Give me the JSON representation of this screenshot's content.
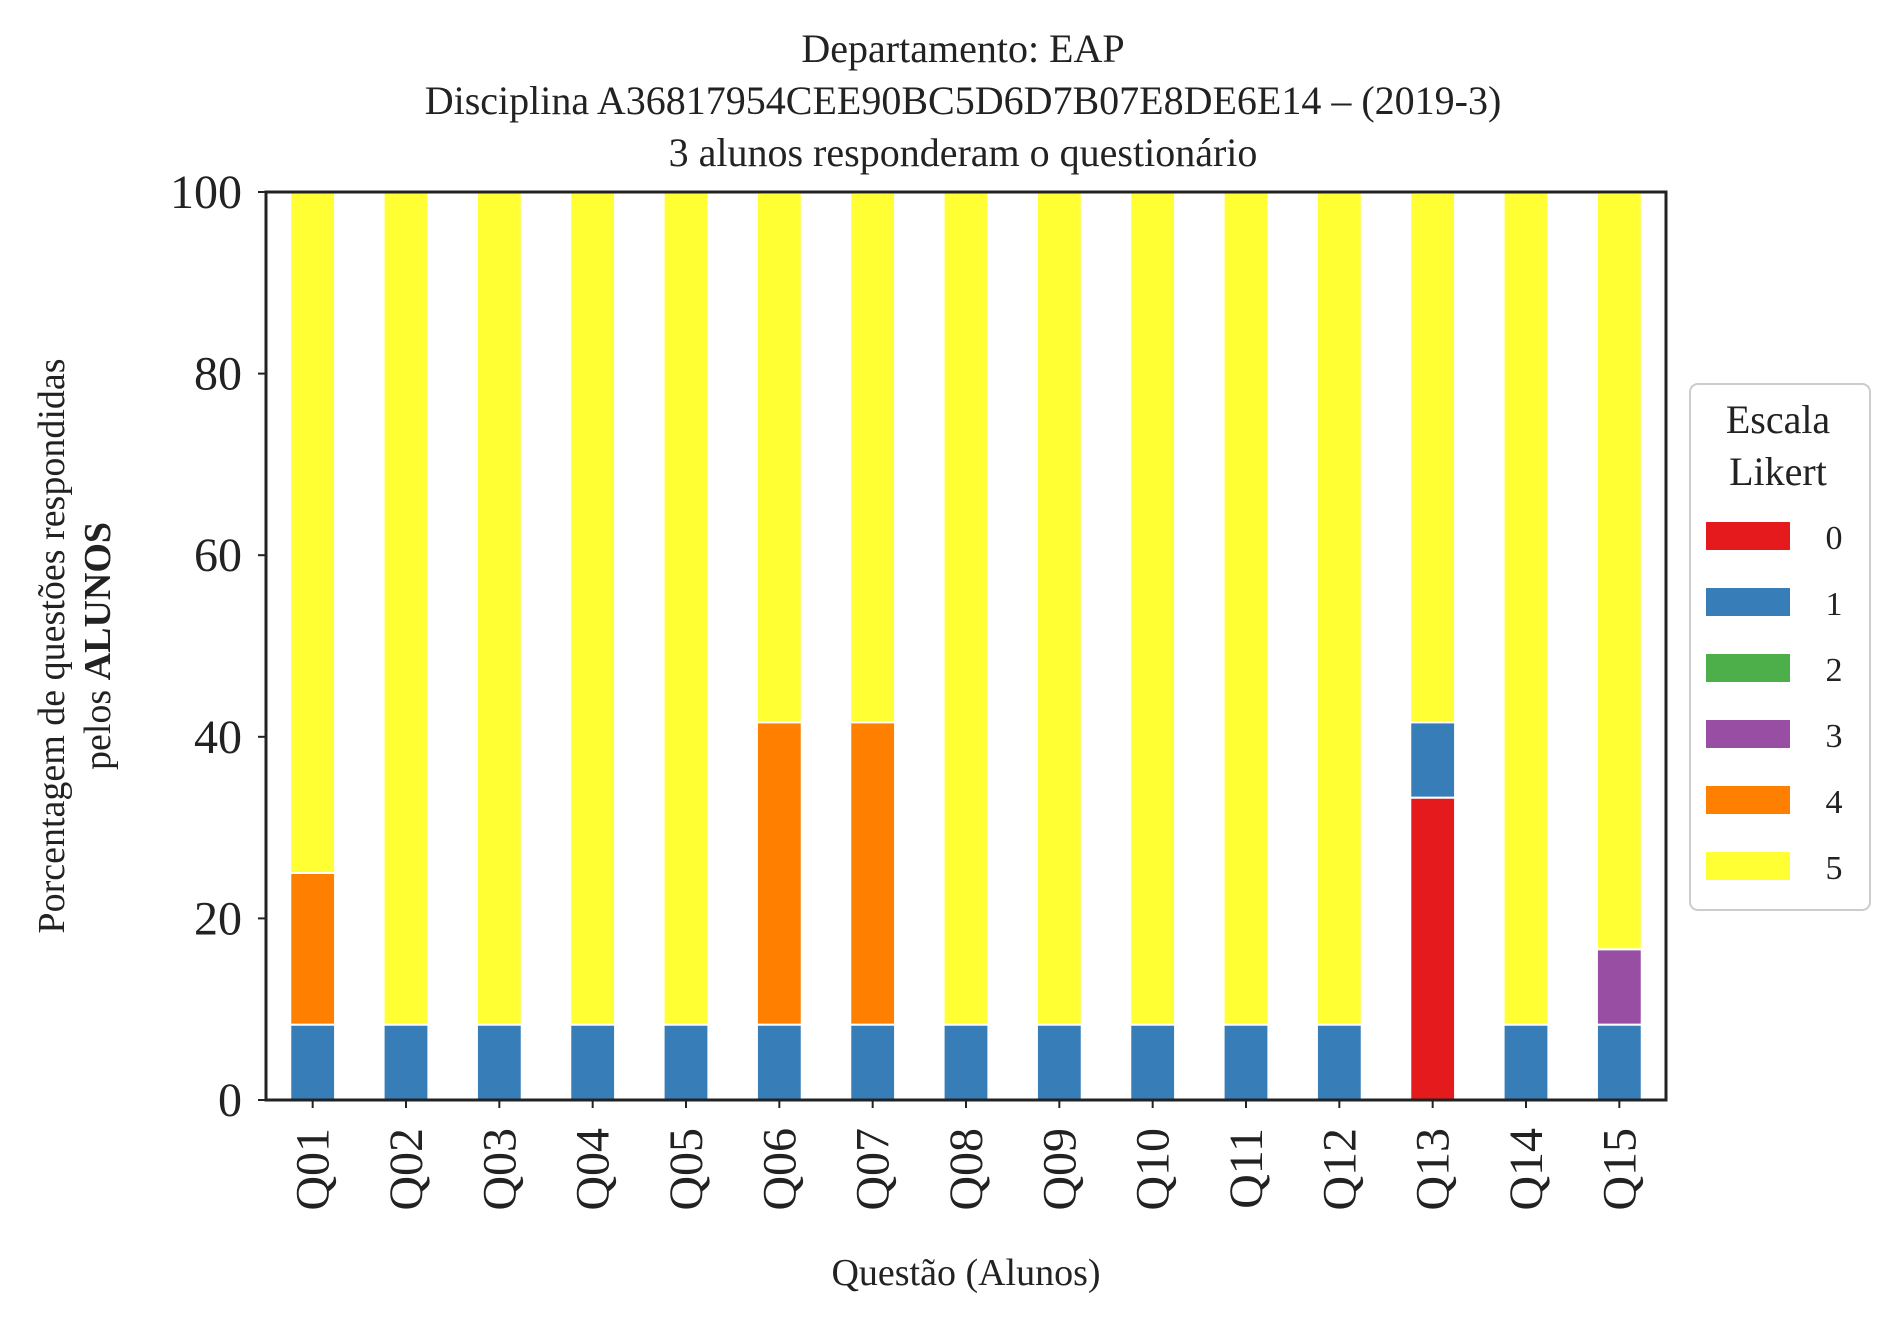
{
  "chart_data": {
    "type": "bar",
    "stacked": true,
    "title_lines": [
      "Departamento: EAP",
      "Disciplina A36817954CEE90BC5D6D7B07E8DE6E14 – (2019-3)",
      "3 alunos responderam o questionário"
    ],
    "xlabel": "Questão (Alunos)",
    "ylabel_line1": "Porcentagem de questões respondidas",
    "ylabel_line2_prefix": "pelos ",
    "ylabel_line2_bold": "ALUNOS",
    "ylim": [
      0,
      100
    ],
    "yticks": [
      "0",
      "20",
      "40",
      "60",
      "80",
      "100"
    ],
    "grid": false,
    "legend_position": "right",
    "legend_title_lines": [
      "Escala",
      "Likert"
    ],
    "categories": [
      "Q01",
      "Q02",
      "Q03",
      "Q04",
      "Q05",
      "Q06",
      "Q07",
      "Q08",
      "Q09",
      "Q10",
      "Q11",
      "Q12",
      "Q13",
      "Q14",
      "Q15"
    ],
    "series": [
      {
        "name": "0",
        "color": "#e41a1c",
        "values": [
          0,
          0,
          0,
          0,
          0,
          0,
          0,
          0,
          0,
          0,
          0,
          0,
          33.3,
          0,
          0
        ]
      },
      {
        "name": "1",
        "color": "#377eb8",
        "values": [
          8.3,
          8.3,
          8.3,
          8.3,
          8.3,
          8.3,
          8.3,
          8.3,
          8.3,
          8.3,
          8.3,
          8.3,
          8.3,
          8.3,
          8.3
        ]
      },
      {
        "name": "2",
        "color": "#4daf4a",
        "values": [
          0,
          0,
          0,
          0,
          0,
          0,
          0,
          0,
          0,
          0,
          0,
          0,
          0,
          0,
          0
        ]
      },
      {
        "name": "3",
        "color": "#984ea3",
        "values": [
          0,
          0,
          0,
          0,
          0,
          0,
          0,
          0,
          0,
          0,
          0,
          0,
          0,
          0,
          8.3
        ]
      },
      {
        "name": "4",
        "color": "#ff7f00",
        "values": [
          16.7,
          0,
          0,
          0,
          0,
          33.3,
          33.3,
          0,
          0,
          0,
          0,
          0,
          0,
          0,
          0
        ]
      },
      {
        "name": "5",
        "color": "#ffff33",
        "values": [
          75.0,
          91.7,
          91.7,
          91.7,
          91.7,
          58.3,
          58.3,
          91.7,
          91.7,
          91.7,
          91.7,
          91.7,
          58.3,
          91.7,
          83.3
        ]
      }
    ]
  }
}
